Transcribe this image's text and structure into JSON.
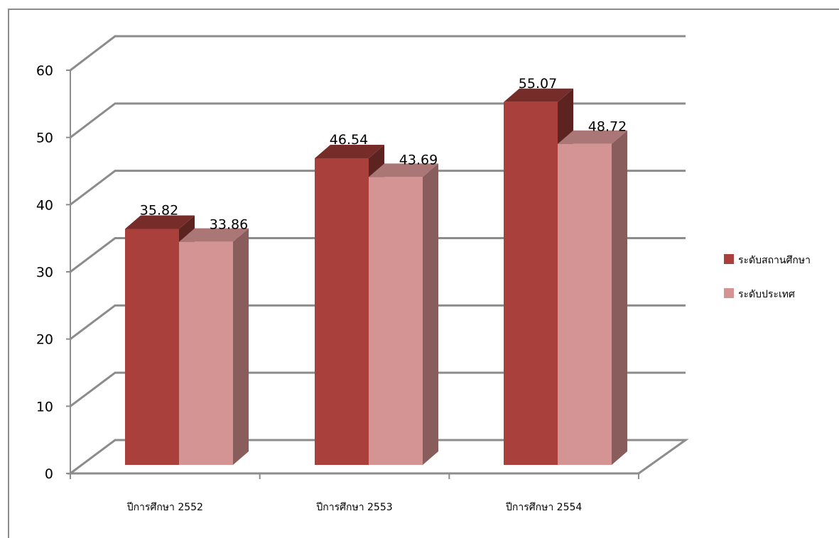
{
  "chart_data": {
    "type": "bar",
    "categories": [
      "ปีการศึกษา 2552",
      "ปีการศึกษา 2553",
      "ปีการศึกษา 2554"
    ],
    "series": [
      {
        "name": "ระดับสถานศึกษา",
        "values": [
          35.82,
          46.54,
          55.07
        ],
        "color": "#a9403c"
      },
      {
        "name": "ระดับประเทศ",
        "values": [
          33.86,
          43.69,
          48.72
        ],
        "color": "#d59494"
      }
    ],
    "ylim": [
      0,
      60
    ],
    "yticks": [
      0,
      10,
      20,
      30,
      40,
      50,
      60
    ],
    "grid": true,
    "legend": "right",
    "style": "3d"
  }
}
